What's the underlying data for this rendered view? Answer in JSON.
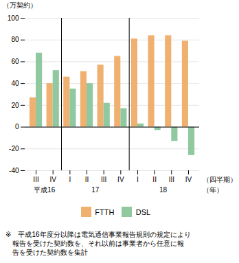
{
  "chart_data": {
    "type": "bar",
    "ylabel": "（万契約）",
    "xlabel": "（四半期）",
    "x_group_label": "（年）",
    "categories": [
      "III",
      "IV",
      "I",
      "II",
      "III",
      "IV",
      "I",
      "II",
      "III",
      "IV"
    ],
    "groups": [
      {
        "label": "平成16",
        "count": 2
      },
      {
        "label": "17",
        "count": 4
      },
      {
        "label": "18",
        "count": 4
      }
    ],
    "series": [
      {
        "name": "FTTH",
        "color": "#F0B070",
        "values": [
          27,
          40,
          46,
          51,
          57,
          65,
          81,
          84,
          84,
          79
        ]
      },
      {
        "name": "DSL",
        "color": "#90C8A0",
        "values": [
          68,
          52,
          35,
          40,
          22,
          17,
          3,
          -3,
          -13,
          -26
        ]
      }
    ],
    "ylim": [
      -40,
      100
    ],
    "yticks": [
      -40,
      -20,
      0,
      20,
      40,
      60,
      80,
      100
    ],
    "grid": true,
    "legend": "bottom",
    "footnote": [
      "※　平成16年度分以降は電気通信事業報告規則の規定により",
      "　報告を受けた契約数を、それ以前は事業者から任意に報",
      "　告を受けた契約数を集計"
    ]
  }
}
